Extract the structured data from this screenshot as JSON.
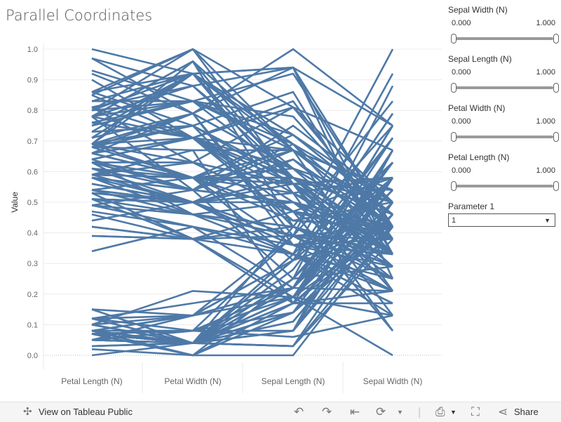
{
  "title": "Parallel Coordinates",
  "filters": [
    {
      "label": "Sepal Width (N)",
      "min": "0.000",
      "max": "1.000"
    },
    {
      "label": "Sepal Length (N)",
      "min": "0.000",
      "max": "1.000"
    },
    {
      "label": "Petal Width (N)",
      "min": "0.000",
      "max": "1.000"
    },
    {
      "label": "Petal Length (N)",
      "min": "0.000",
      "max": "1.000"
    }
  ],
  "parameter": {
    "label": "Parameter 1",
    "value": "1"
  },
  "footer": {
    "view_label": "View on Tableau Public",
    "share_label": "Share"
  },
  "colors": {
    "line": "#4e79a7"
  },
  "chart_data": {
    "type": "line",
    "title": "Parallel Coordinates",
    "ylabel": "Value",
    "xlabel": "",
    "categories": [
      "Petal Length (N)",
      "Petal Width (N)",
      "Sepal Length (N)",
      "Sepal Width (N)"
    ],
    "ylim": [
      0,
      1
    ],
    "yticks": [
      "0.0",
      "0.1",
      "0.2",
      "0.3",
      "0.4",
      "0.5",
      "0.6",
      "0.7",
      "0.8",
      "0.9",
      "1.0"
    ],
    "grid": true,
    "series": [
      {
        "values": [
          0.07,
          0.04,
          0.22,
          0.63
        ]
      },
      {
        "values": [
          0.07,
          0.04,
          0.17,
          0.42
        ]
      },
      {
        "values": [
          0.05,
          0.04,
          0.11,
          0.5
        ]
      },
      {
        "values": [
          0.08,
          0.04,
          0.08,
          0.46
        ]
      },
      {
        "values": [
          0.07,
          0.04,
          0.19,
          0.67
        ]
      },
      {
        "values": [
          0.12,
          0.13,
          0.31,
          0.79
        ]
      },
      {
        "values": [
          0.07,
          0.08,
          0.08,
          0.58
        ]
      },
      {
        "values": [
          0.08,
          0.04,
          0.19,
          0.58
        ]
      },
      {
        "values": [
          0.07,
          0.04,
          0.03,
          0.38
        ]
      },
      {
        "values": [
          0.08,
          0.0,
          0.17,
          0.46
        ]
      },
      {
        "values": [
          0.08,
          0.04,
          0.31,
          0.71
        ]
      },
      {
        "values": [
          0.1,
          0.04,
          0.14,
          0.58
        ]
      },
      {
        "values": [
          0.07,
          0.0,
          0.14,
          0.42
        ]
      },
      {
        "values": [
          0.02,
          0.0,
          0.0,
          0.42
        ]
      },
      {
        "values": [
          0.03,
          0.04,
          0.42,
          0.83
        ]
      },
      {
        "values": [
          0.08,
          0.13,
          0.39,
          1.0
        ]
      },
      {
        "values": [
          0.05,
          0.13,
          0.31,
          0.79
        ]
      },
      {
        "values": [
          0.07,
          0.08,
          0.22,
          0.63
        ]
      },
      {
        "values": [
          0.12,
          0.08,
          0.39,
          0.75
        ]
      },
      {
        "values": [
          0.08,
          0.08,
          0.22,
          0.75
        ]
      },
      {
        "values": [
          0.12,
          0.04,
          0.31,
          0.58
        ]
      },
      {
        "values": [
          0.08,
          0.13,
          0.22,
          0.71
        ]
      },
      {
        "values": [
          0.0,
          0.04,
          0.08,
          0.67
        ]
      },
      {
        "values": [
          0.12,
          0.17,
          0.22,
          0.54
        ]
      },
      {
        "values": [
          0.15,
          0.04,
          0.14,
          0.58
        ]
      },
      {
        "values": [
          0.1,
          0.04,
          0.19,
          0.42
        ]
      },
      {
        "values": [
          0.1,
          0.13,
          0.19,
          0.58
        ]
      },
      {
        "values": [
          0.08,
          0.04,
          0.25,
          0.63
        ]
      },
      {
        "values": [
          0.07,
          0.04,
          0.25,
          0.58
        ]
      },
      {
        "values": [
          0.1,
          0.04,
          0.11,
          0.5
        ]
      },
      {
        "values": [
          0.1,
          0.04,
          0.14,
          0.46
        ]
      },
      {
        "values": [
          0.08,
          0.13,
          0.31,
          0.58
        ]
      },
      {
        "values": [
          0.08,
          0.0,
          0.25,
          0.88
        ]
      },
      {
        "values": [
          0.07,
          0.04,
          0.33,
          0.92
        ]
      },
      {
        "values": [
          0.08,
          0.04,
          0.17,
          0.46
        ]
      },
      {
        "values": [
          0.03,
          0.04,
          0.19,
          0.5
        ]
      },
      {
        "values": [
          0.05,
          0.04,
          0.33,
          0.63
        ]
      },
      {
        "values": [
          0.07,
          0.0,
          0.17,
          0.67
        ]
      },
      {
        "values": [
          0.05,
          0.04,
          0.03,
          0.42
        ]
      },
      {
        "values": [
          0.08,
          0.04,
          0.22,
          0.58
        ]
      },
      {
        "values": [
          0.05,
          0.08,
          0.19,
          0.63
        ]
      },
      {
        "values": [
          0.05,
          0.08,
          0.06,
          0.13
        ]
      },
      {
        "values": [
          0.05,
          0.04,
          0.03,
          0.5
        ]
      },
      {
        "values": [
          0.1,
          0.21,
          0.19,
          0.63
        ]
      },
      {
        "values": [
          0.15,
          0.13,
          0.22,
          0.75
        ]
      },
      {
        "values": [
          0.07,
          0.08,
          0.14,
          0.42
        ]
      },
      {
        "values": [
          0.1,
          0.04,
          0.22,
          0.75
        ]
      },
      {
        "values": [
          0.07,
          0.04,
          0.08,
          0.5
        ]
      },
      {
        "values": [
          0.08,
          0.04,
          0.28,
          0.71
        ]
      },
      {
        "values": [
          0.07,
          0.04,
          0.19,
          0.54
        ]
      },
      {
        "values": [
          0.63,
          0.54,
          0.75,
          0.5
        ]
      },
      {
        "values": [
          0.59,
          0.58,
          0.58,
          0.5
        ]
      },
      {
        "values": [
          0.66,
          0.58,
          0.72,
          0.46
        ]
      },
      {
        "values": [
          0.51,
          0.5,
          0.33,
          0.13
        ]
      },
      {
        "values": [
          0.61,
          0.58,
          0.61,
          0.33
        ]
      },
      {
        "values": [
          0.59,
          0.5,
          0.39,
          0.33
        ]
      },
      {
        "values": [
          0.63,
          0.63,
          0.56,
          0.54
        ]
      },
      {
        "values": [
          0.39,
          0.38,
          0.17,
          0.17
        ]
      },
      {
        "values": [
          0.61,
          0.5,
          0.64,
          0.38
        ]
      },
      {
        "values": [
          0.49,
          0.54,
          0.25,
          0.29
        ]
      },
      {
        "values": [
          0.42,
          0.38,
          0.19,
          0.0
        ]
      },
      {
        "values": [
          0.54,
          0.58,
          0.44,
          0.42
        ]
      },
      {
        "values": [
          0.51,
          0.38,
          0.47,
          0.08
        ]
      },
      {
        "values": [
          0.63,
          0.54,
          0.5,
          0.38
        ]
      },
      {
        "values": [
          0.44,
          0.5,
          0.36,
          0.38
        ]
      },
      {
        "values": [
          0.58,
          0.54,
          0.67,
          0.46
        ]
      },
      {
        "values": [
          0.59,
          0.58,
          0.36,
          0.42
        ]
      },
      {
        "values": [
          0.53,
          0.38,
          0.42,
          0.29
        ]
      },
      {
        "values": [
          0.59,
          0.58,
          0.53,
          0.08
        ]
      },
      {
        "values": [
          0.49,
          0.42,
          0.36,
          0.21
        ]
      },
      {
        "values": [
          0.64,
          0.71,
          0.44,
          0.5
        ]
      },
      {
        "values": [
          0.51,
          0.5,
          0.5,
          0.33
        ]
      },
      {
        "values": [
          0.66,
          0.58,
          0.56,
          0.21
        ]
      },
      {
        "values": [
          0.63,
          0.46,
          0.5,
          0.33
        ]
      },
      {
        "values": [
          0.56,
          0.5,
          0.58,
          0.38
        ]
      },
      {
        "values": [
          0.58,
          0.54,
          0.64,
          0.42
        ]
      },
      {
        "values": [
          0.64,
          0.54,
          0.69,
          0.33
        ]
      },
      {
        "values": [
          0.68,
          0.67,
          0.67,
          0.42
        ]
      },
      {
        "values": [
          0.59,
          0.58,
          0.47,
          0.38
        ]
      },
      {
        "values": [
          0.42,
          0.38,
          0.39,
          0.25
        ]
      },
      {
        "values": [
          0.47,
          0.42,
          0.33,
          0.17
        ]
      },
      {
        "values": [
          0.46,
          0.38,
          0.33,
          0.17
        ]
      },
      {
        "values": [
          0.49,
          0.46,
          0.42,
          0.29
        ]
      },
      {
        "values": [
          0.69,
          0.63,
          0.47,
          0.29
        ]
      },
      {
        "values": [
          0.59,
          0.58,
          0.31,
          0.42
        ]
      },
      {
        "values": [
          0.59,
          0.63,
          0.47,
          0.58
        ]
      },
      {
        "values": [
          0.63,
          0.58,
          0.67,
          0.46
        ]
      },
      {
        "values": [
          0.58,
          0.5,
          0.56,
          0.13
        ]
      },
      {
        "values": [
          0.53,
          0.5,
          0.36,
          0.42
        ]
      },
      {
        "values": [
          0.51,
          0.5,
          0.33,
          0.21
        ]
      },
      {
        "values": [
          0.58,
          0.46,
          0.33,
          0.25
        ]
      },
      {
        "values": [
          0.61,
          0.54,
          0.5,
          0.42
        ]
      },
      {
        "values": [
          0.51,
          0.46,
          0.42,
          0.25
        ]
      },
      {
        "values": [
          0.39,
          0.38,
          0.19,
          0.13
        ]
      },
      {
        "values": [
          0.54,
          0.5,
          0.36,
          0.29
        ]
      },
      {
        "values": [
          0.54,
          0.46,
          0.39,
          0.42
        ]
      },
      {
        "values": [
          0.54,
          0.5,
          0.39,
          0.38
        ]
      },
      {
        "values": [
          0.56,
          0.5,
          0.53,
          0.38
        ]
      },
      {
        "values": [
          0.34,
          0.42,
          0.22,
          0.21
        ]
      },
      {
        "values": [
          0.53,
          0.5,
          0.39,
          0.33
        ]
      },
      {
        "values": [
          0.85,
          1.0,
          0.56,
          0.54
        ]
      },
      {
        "values": [
          0.69,
          0.75,
          0.42,
          0.29
        ]
      },
      {
        "values": [
          0.83,
          0.83,
          0.78,
          0.42
        ]
      },
      {
        "values": [
          0.78,
          0.71,
          0.56,
          0.38
        ]
      },
      {
        "values": [
          0.81,
          0.88,
          0.61,
          0.42
        ]
      },
      {
        "values": [
          0.93,
          0.83,
          0.92,
          0.42
        ]
      },
      {
        "values": [
          0.59,
          0.67,
          0.17,
          0.21
        ]
      },
      {
        "values": [
          0.9,
          0.71,
          0.83,
          0.38
        ]
      },
      {
        "values": [
          0.81,
          0.71,
          0.67,
          0.21
        ]
      },
      {
        "values": [
          0.86,
          1.0,
          0.81,
          0.67
        ]
      },
      {
        "values": [
          0.69,
          0.79,
          0.61,
          0.5
        ]
      },
      {
        "values": [
          0.73,
          0.75,
          0.58,
          0.29
        ]
      },
      {
        "values": [
          0.76,
          0.83,
          0.69,
          0.42
        ]
      },
      {
        "values": [
          0.68,
          0.79,
          0.39,
          0.21
        ]
      },
      {
        "values": [
          0.69,
          0.96,
          0.42,
          0.33
        ]
      },
      {
        "values": [
          0.73,
          0.92,
          0.58,
          0.5
        ]
      },
      {
        "values": [
          0.76,
          0.71,
          0.61,
          0.42
        ]
      },
      {
        "values": [
          0.97,
          0.88,
          0.94,
          0.75
        ]
      },
      {
        "values": [
          1.0,
          0.92,
          0.94,
          0.25
        ]
      },
      {
        "values": [
          0.68,
          0.58,
          0.47,
          0.08
        ]
      },
      {
        "values": [
          0.8,
          0.92,
          0.72,
          0.5
        ]
      },
      {
        "values": [
          0.66,
          0.79,
          0.36,
          0.33
        ]
      },
      {
        "values": [
          0.97,
          0.79,
          0.94,
          0.33
        ]
      },
      {
        "values": [
          0.66,
          0.71,
          0.56,
          0.29
        ]
      },
      {
        "values": [
          0.8,
          0.83,
          0.67,
          0.54
        ]
      },
      {
        "values": [
          0.85,
          0.71,
          0.81,
          0.5
        ]
      },
      {
        "values": [
          0.64,
          0.71,
          0.53,
          0.33
        ]
      },
      {
        "values": [
          0.66,
          0.71,
          0.5,
          0.42
        ]
      },
      {
        "values": [
          0.78,
          0.83,
          0.58,
          0.33
        ]
      },
      {
        "values": [
          0.81,
          0.63,
          0.81,
          0.42
        ]
      },
      {
        "values": [
          0.86,
          0.75,
          0.86,
          0.33
        ]
      },
      {
        "values": [
          0.92,
          0.79,
          1.0,
          0.75
        ]
      },
      {
        "values": [
          0.78,
          0.88,
          0.58,
          0.33
        ]
      },
      {
        "values": [
          0.69,
          0.58,
          0.56,
          0.33
        ]
      },
      {
        "values": [
          0.78,
          0.54,
          0.5,
          0.25
        ]
      },
      {
        "values": [
          0.86,
          0.92,
          0.94,
          0.42
        ]
      },
      {
        "values": [
          0.78,
          0.96,
          0.56,
          0.58
        ]
      },
      {
        "values": [
          0.76,
          0.71,
          0.58,
          0.46
        ]
      },
      {
        "values": [
          0.64,
          0.71,
          0.47,
          0.42
        ]
      },
      {
        "values": [
          0.75,
          0.83,
          0.72,
          0.46
        ]
      },
      {
        "values": [
          0.78,
          0.96,
          0.67,
          0.46
        ]
      },
      {
        "values": [
          0.69,
          0.92,
          0.72,
          0.46
        ]
      },
      {
        "values": [
          0.69,
          0.75,
          0.42,
          0.29
        ]
      },
      {
        "values": [
          0.83,
          0.92,
          0.69,
          0.5
        ]
      },
      {
        "values": [
          0.8,
          1.0,
          0.67,
          0.54
        ]
      },
      {
        "values": [
          0.71,
          0.92,
          0.67,
          0.42
        ]
      },
      {
        "values": [
          0.68,
          0.75,
          0.56,
          0.21
        ]
      },
      {
        "values": [
          0.71,
          0.79,
          0.61,
          0.42
        ]
      },
      {
        "values": [
          0.75,
          0.92,
          0.53,
          0.58
        ]
      },
      {
        "values": [
          0.69,
          0.71,
          0.44,
          0.42
        ]
      }
    ]
  }
}
